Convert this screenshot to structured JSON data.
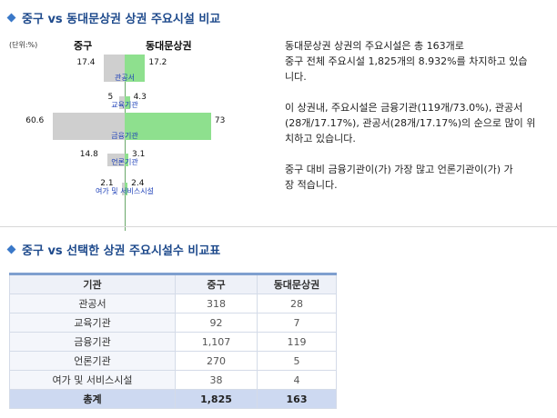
{
  "section1": {
    "title": "중구 vs 동대문상권 상권 주요시설 비교"
  },
  "section2": {
    "title": "중구 vs 선택한 상권 주요시설수 비교표"
  },
  "chart_data": {
    "type": "bar",
    "unit_label": "(단위:%)",
    "series": [
      {
        "name": "중구",
        "values": [
          17.4,
          5,
          60.6,
          14.8,
          2.1
        ]
      },
      {
        "name": "동대문상권",
        "values": [
          17.2,
          4.3,
          73,
          3.1,
          2.4
        ]
      }
    ],
    "categories": [
      "관공서",
      "교육기관",
      "금융기관",
      "언론기관",
      "여가 및 서비스시설"
    ],
    "colors": {
      "left": "#cfcfcf",
      "right": "#8ee08e",
      "category_label": "#1c3fb8"
    },
    "value_labels": {
      "left": [
        "17.4",
        "5",
        "60.6",
        "14.8",
        "2.1"
      ],
      "right": [
        "17.2",
        "4.3",
        "73",
        "3.1",
        "2.4"
      ]
    }
  },
  "description": [
    "동대문상권 상권의 주요시설은 총 163개로\n중구 전체 주요시설 1,825개의 8.932%를 차지하고 있습\n니다.",
    "이 상권내, 주요시설은 금융기관(119개/73.0%), 관공서\n(28개/17.17%), 관공서(28개/17.17%)의 순으로 많이 위\n치하고 있습니다.",
    "중구 대비 금융기관이(가) 가장 많고 언론기관이(가) 가\n장 적습니다."
  ],
  "table": {
    "headers": [
      "기관",
      "중구",
      "동대문상권"
    ],
    "rows": [
      [
        "관공서",
        "318",
        "28"
      ],
      [
        "교육기관",
        "92",
        "7"
      ],
      [
        "금융기관",
        "1,107",
        "119"
      ],
      [
        "언론기관",
        "270",
        "5"
      ],
      [
        "여가 및 서비스시설",
        "38",
        "4"
      ]
    ],
    "total": [
      "총계",
      "1,825",
      "163"
    ]
  }
}
